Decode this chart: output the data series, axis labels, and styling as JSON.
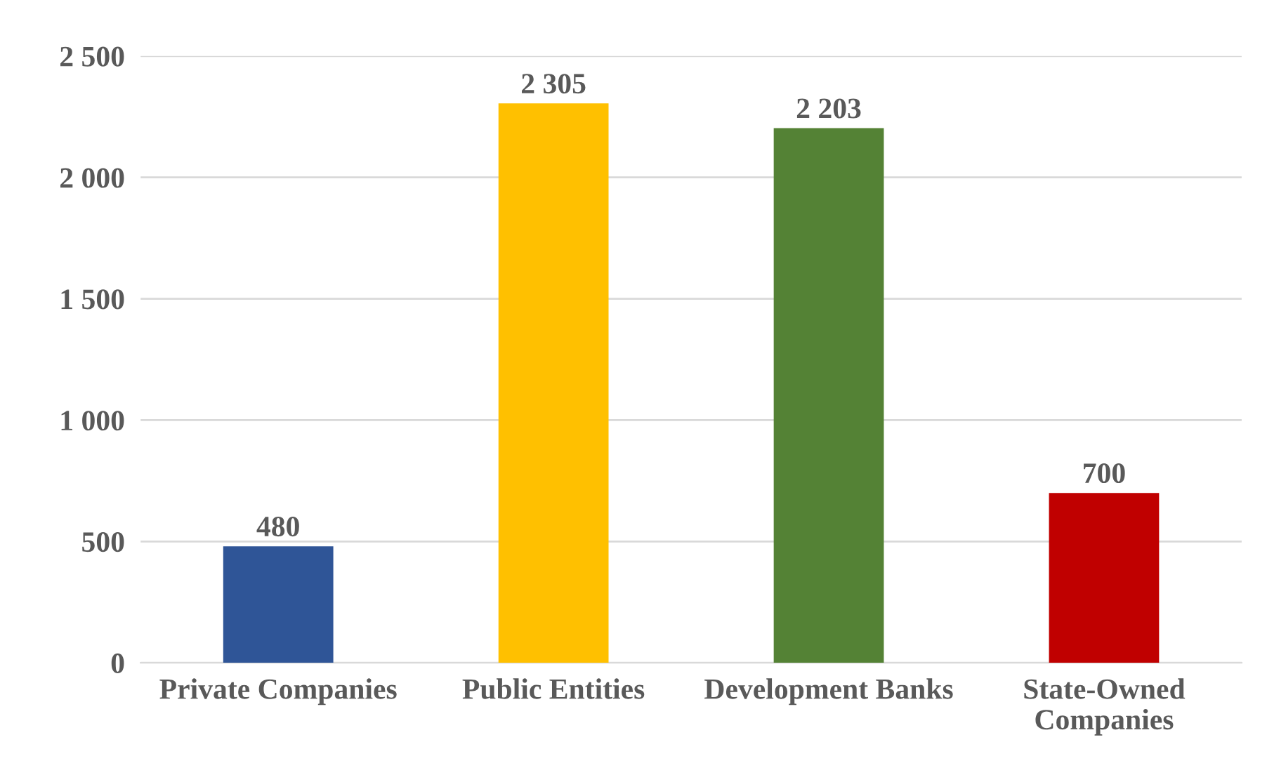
{
  "chart_data": {
    "type": "bar",
    "categories": [
      "Private Companies",
      "Public Entities",
      "Development Banks",
      "State-Owned\nCompanies"
    ],
    "values": [
      480,
      2305,
      2203,
      700
    ],
    "colors": [
      "#2f5597",
      "#ffc000",
      "#548235",
      "#c00000"
    ],
    "value_labels": [
      "480",
      "2 305",
      "2 203",
      "700"
    ],
    "ylim": [
      0,
      2500
    ],
    "yticks": [
      0,
      500,
      {
        "value": 1000,
        "label": "1 000"
      },
      {
        "value": 1500,
        "label": "1 500"
      },
      {
        "value": 2000,
        "label": "2 000"
      },
      {
        "value": 2500,
        "label": "2 500"
      }
    ],
    "grid": "y",
    "legend": false
  }
}
